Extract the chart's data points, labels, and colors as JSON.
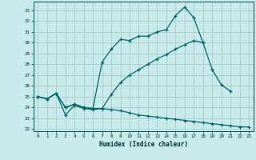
{
  "xlabel": "Humidex (Indice chaleur)",
  "bg_color": "#c8eaea",
  "grid_color": "#a8cccc",
  "line_color": "#006868",
  "xlim": [
    -0.5,
    23.5
  ],
  "ylim": [
    21.8,
    33.8
  ],
  "xticks": [
    0,
    1,
    2,
    3,
    4,
    5,
    6,
    7,
    8,
    9,
    10,
    11,
    12,
    13,
    14,
    15,
    16,
    17,
    18,
    19,
    20,
    21,
    22,
    23
  ],
  "yticks": [
    22,
    23,
    24,
    25,
    26,
    27,
    28,
    29,
    30,
    31,
    32,
    33
  ],
  "line1_x": [
    0,
    1,
    2,
    3,
    4,
    5,
    6,
    7,
    8,
    9,
    10,
    11,
    12,
    13,
    14,
    15,
    16,
    17,
    18,
    19,
    20,
    21,
    22
  ],
  "line1_y": [
    25.0,
    24.8,
    25.3,
    24.0,
    24.3,
    24.0,
    23.9,
    28.2,
    29.4,
    30.3,
    30.2,
    30.6,
    30.6,
    31.0,
    31.2,
    32.5,
    33.3,
    32.3,
    30.0,
    null,
    null,
    null,
    null
  ],
  "line2_x": [
    0,
    1,
    2,
    3,
    4,
    5,
    6,
    7,
    8,
    9,
    10,
    11,
    12,
    13,
    14,
    15,
    16,
    17,
    18,
    19,
    20,
    21,
    22
  ],
  "line2_y": [
    25.0,
    24.8,
    25.3,
    24.0,
    24.3,
    24.0,
    23.9,
    23.9,
    25.2,
    26.3,
    27.0,
    27.5,
    28.0,
    28.5,
    28.9,
    29.4,
    29.8,
    30.2,
    30.0,
    27.5,
    26.1,
    25.5,
    null
  ],
  "line3_x": [
    0,
    1,
    2,
    3,
    4,
    5,
    6,
    7,
    8,
    9,
    10,
    11,
    12,
    13,
    14,
    15,
    16,
    17,
    18,
    19,
    20,
    21,
    22,
    23
  ],
  "line3_y": [
    25.0,
    24.8,
    25.3,
    23.3,
    24.2,
    23.9,
    23.8,
    23.9,
    23.8,
    23.7,
    23.5,
    23.3,
    23.2,
    23.1,
    23.0,
    22.9,
    22.8,
    22.7,
    22.6,
    22.5,
    22.4,
    22.3,
    22.2,
    22.2
  ]
}
